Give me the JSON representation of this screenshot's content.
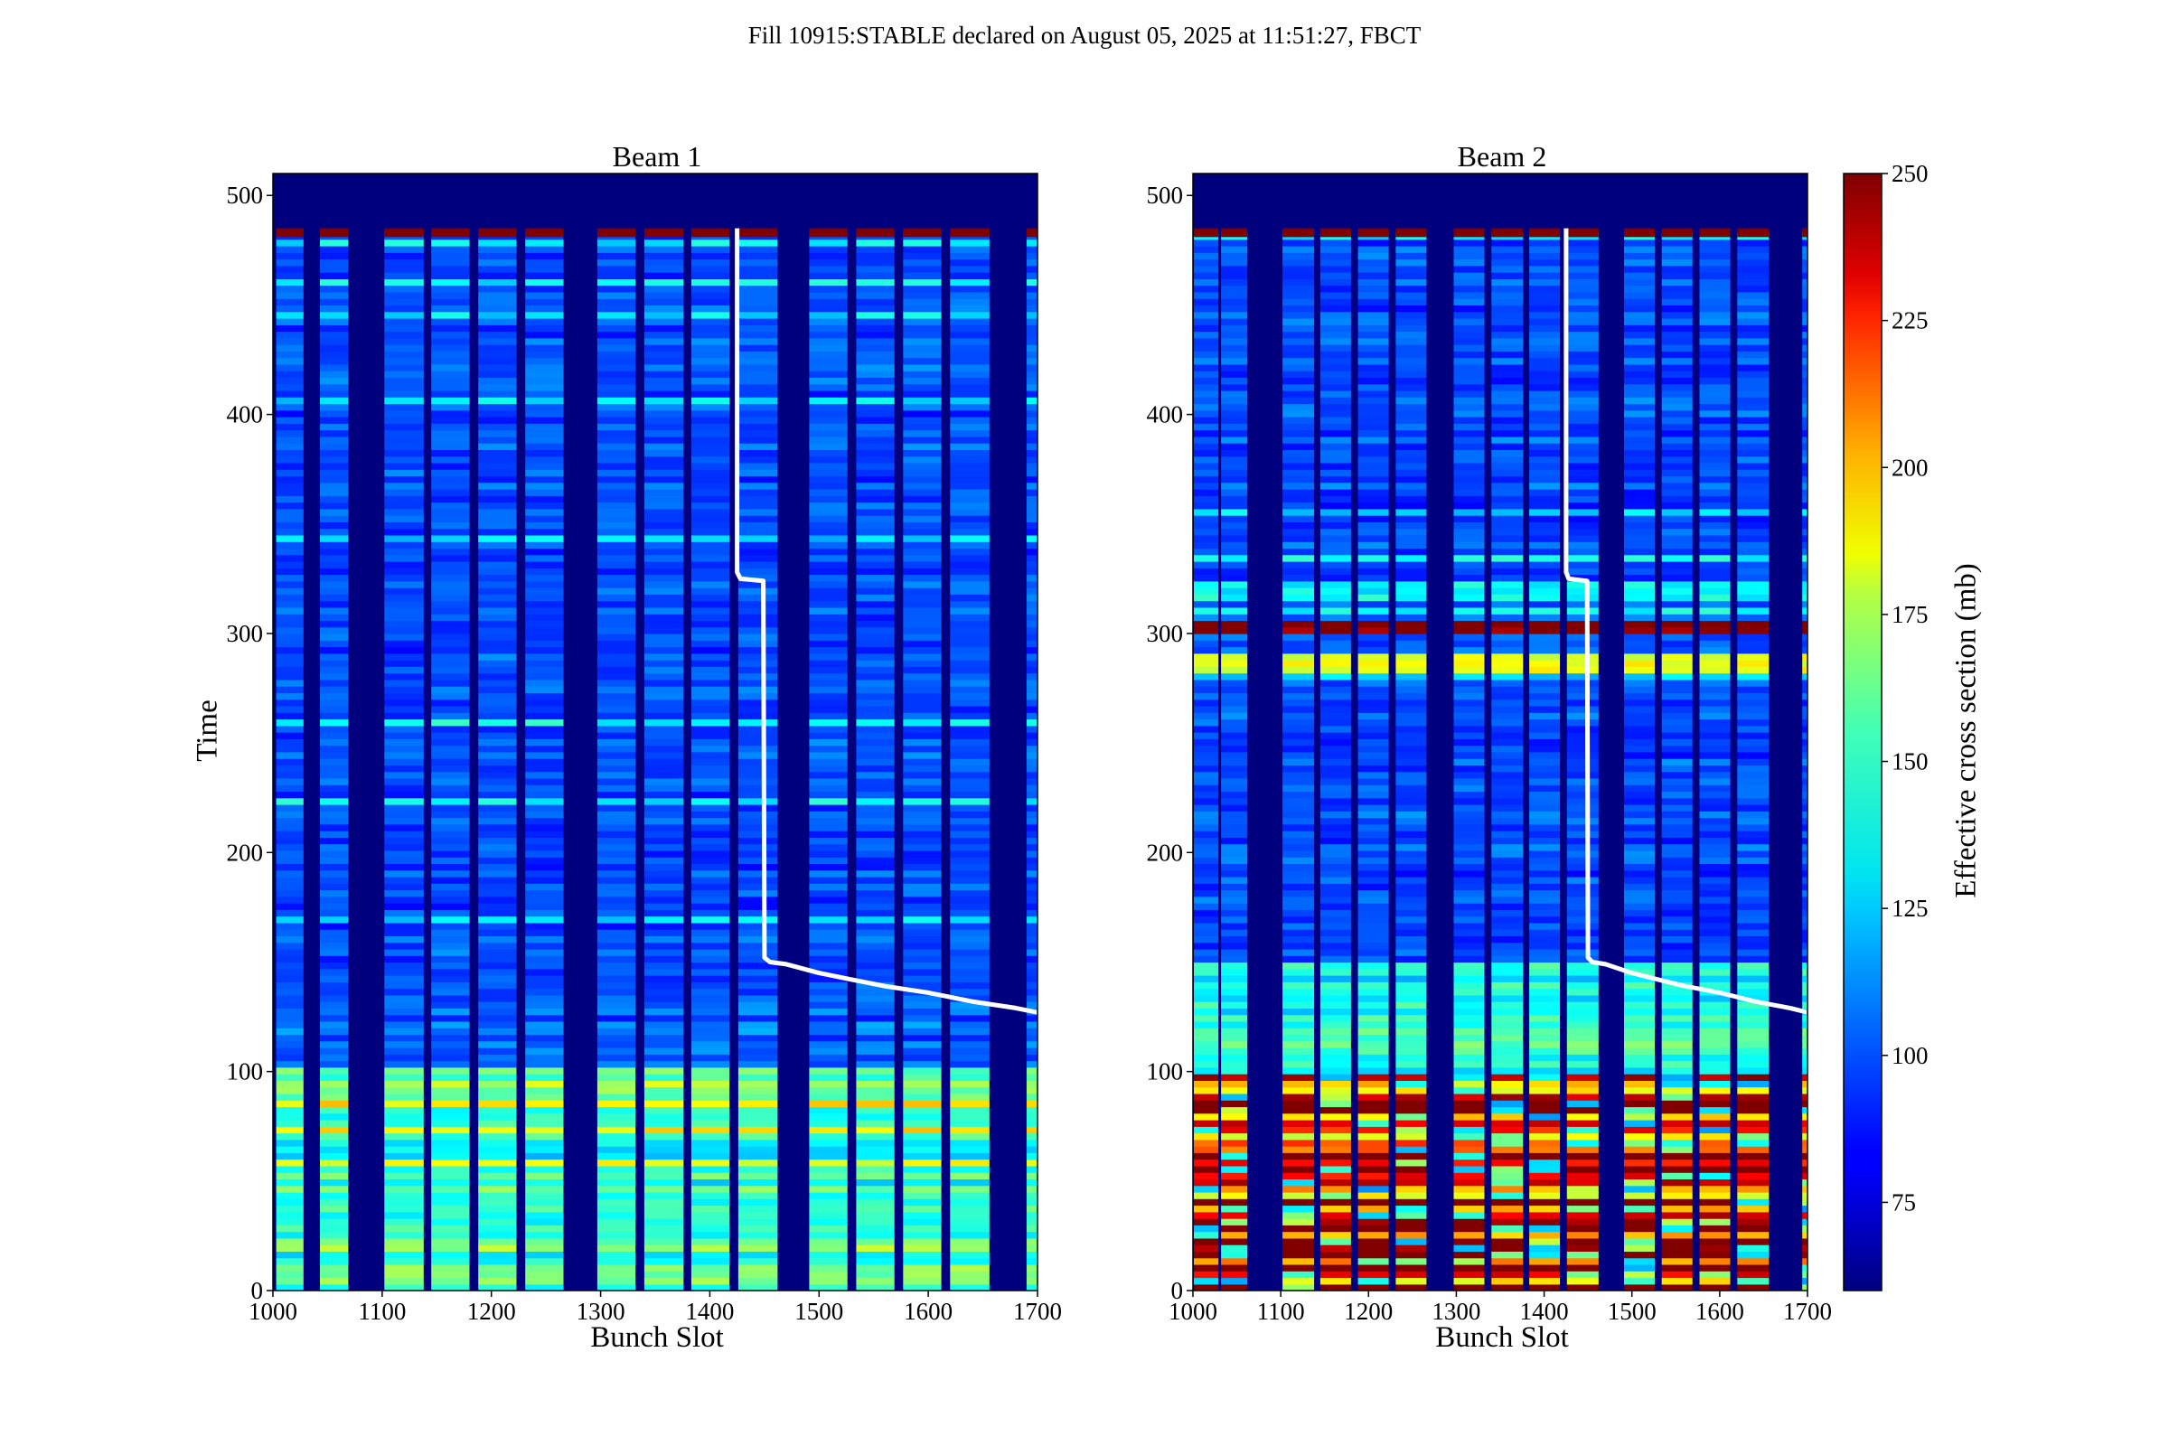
{
  "suptitle": "Fill 10915:STABLE declared on August 05, 2025 at 11:51:27, FBCT",
  "chart_data": [
    {
      "type": "heatmap",
      "title": "Beam 1",
      "xlabel": "Bunch Slot",
      "ylabel": "Time",
      "xlim": [
        1000,
        1700
      ],
      "ylim": [
        0,
        510
      ],
      "xticks": [
        "1000",
        "1100",
        "1200",
        "1300",
        "1400",
        "1500",
        "1600",
        "1700"
      ],
      "yticks": [
        "0",
        "100",
        "200",
        "300",
        "400",
        "500"
      ],
      "bunch_trains": [
        [
          1003,
          1028
        ],
        [
          1043,
          1069
        ],
        [
          1102,
          1138
        ],
        [
          1145,
          1180
        ],
        [
          1188,
          1223
        ],
        [
          1231,
          1266
        ],
        [
          1297,
          1332
        ],
        [
          1340,
          1376
        ],
        [
          1383,
          1418
        ],
        [
          1426,
          1462
        ],
        [
          1491,
          1526
        ],
        [
          1534,
          1569
        ],
        [
          1577,
          1612
        ],
        [
          1620,
          1656
        ],
        [
          1690,
          1700
        ]
      ],
      "data_end_time": 485,
      "white_line": [
        [
          1425,
          485
        ],
        [
          1425,
          328
        ],
        [
          1428,
          325
        ],
        [
          1449,
          324
        ],
        [
          1450,
          152
        ],
        [
          1455,
          150
        ],
        [
          1470,
          149
        ],
        [
          1500,
          145
        ],
        [
          1530,
          142
        ],
        [
          1560,
          139
        ],
        [
          1600,
          136
        ],
        [
          1640,
          132
        ],
        [
          1680,
          129
        ],
        [
          1700,
          127
        ]
      ]
    },
    {
      "type": "heatmap",
      "title": "Beam 2",
      "xlabel": "Bunch Slot",
      "ylabel": "",
      "xlim": [
        1000,
        1700
      ],
      "ylim": [
        0,
        510
      ],
      "xticks": [
        "1000",
        "1100",
        "1200",
        "1300",
        "1400",
        "1500",
        "1600",
        "1700"
      ],
      "yticks": [
        "0",
        "100",
        "200",
        "300",
        "400",
        "500"
      ],
      "bunch_trains": [
        [
          1001,
          1029
        ],
        [
          1032,
          1062
        ],
        [
          1102,
          1138
        ],
        [
          1145,
          1180
        ],
        [
          1188,
          1223
        ],
        [
          1231,
          1266
        ],
        [
          1297,
          1332
        ],
        [
          1340,
          1376
        ],
        [
          1383,
          1418
        ],
        [
          1426,
          1462
        ],
        [
          1491,
          1526
        ],
        [
          1534,
          1569
        ],
        [
          1577,
          1612
        ],
        [
          1620,
          1656
        ],
        [
          1694,
          1700
        ]
      ],
      "data_end_time": 485,
      "white_line": [
        [
          1425,
          485
        ],
        [
          1425,
          328
        ],
        [
          1428,
          325
        ],
        [
          1449,
          324
        ],
        [
          1450,
          152
        ],
        [
          1455,
          150
        ],
        [
          1470,
          149
        ],
        [
          1500,
          145
        ],
        [
          1530,
          142
        ],
        [
          1560,
          139
        ],
        [
          1600,
          136
        ],
        [
          1640,
          132
        ],
        [
          1680,
          129
        ],
        [
          1700,
          127
        ]
      ]
    }
  ],
  "colorbar": {
    "label": "Effective cross section (mb)",
    "min": 60,
    "max": 250,
    "ticks": [
      "75",
      "100",
      "125",
      "150",
      "175",
      "200",
      "225",
      "250"
    ],
    "colormap": "jet"
  },
  "colors": {
    "background": "#00007f",
    "line": "#ffffff"
  }
}
